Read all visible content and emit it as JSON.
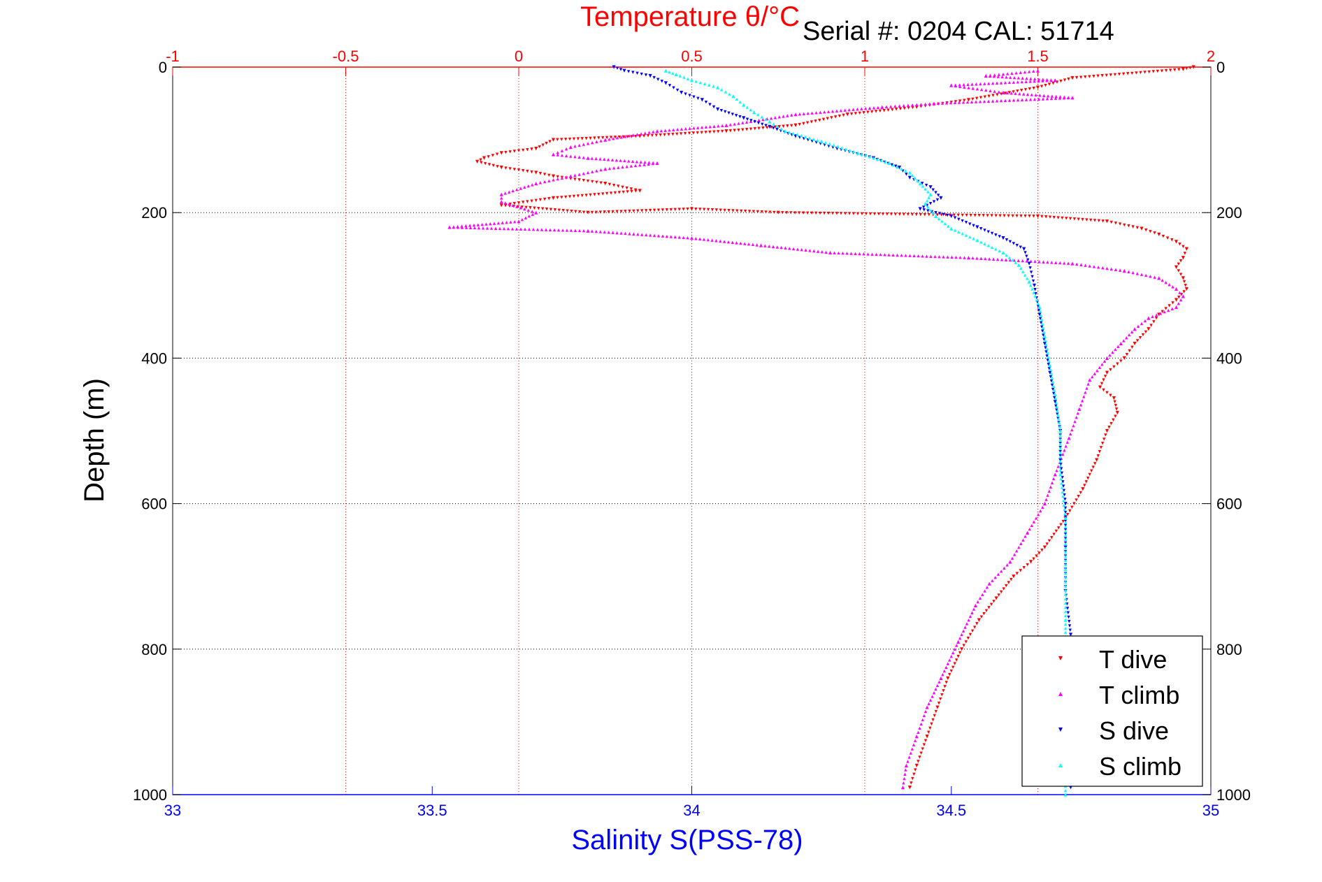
{
  "serial_text": "Serial #: 0204  CAL: 51714",
  "colors": {
    "t_dive": "#ff0000",
    "t_climb": "#ff00ff",
    "s_dive": "#0000ff",
    "s_climb": "#00ffff",
    "temp_axis": "#ff0000",
    "sal_axis": "#0000ff",
    "text": "#000000"
  },
  "chart_data": {
    "type": "scatter",
    "title": "Temperature θ/°C",
    "xlabel": "Salinity S(PSS-78)",
    "ylabel": "Depth (m)",
    "grid": true,
    "legend_position": "bottom-right",
    "y_inverted": true,
    "ylim": [
      0,
      1000
    ],
    "y_ticks": [
      "0",
      "200",
      "400",
      "600",
      "800",
      "1000"
    ],
    "temperature_axis": {
      "position": "top",
      "lim": [
        -1,
        2
      ],
      "ticks": [
        "-1",
        "-0.5",
        "0",
        "0.5",
        "1",
        "1.5",
        "2"
      ]
    },
    "salinity_axis": {
      "position": "bottom",
      "lim": [
        33,
        35
      ],
      "ticks": [
        "33",
        "33.5",
        "34",
        "34.5",
        "35"
      ]
    },
    "series": [
      {
        "name": "T dive",
        "axis": "temperature",
        "points": [
          [
            1.95,
            0
          ],
          [
            1.92,
            3
          ],
          [
            1.6,
            15
          ],
          [
            1.5,
            28
          ],
          [
            1.3,
            45
          ],
          [
            1.15,
            55
          ],
          [
            0.95,
            65
          ],
          [
            0.8,
            80
          ],
          [
            0.6,
            88
          ],
          [
            0.35,
            95
          ],
          [
            0.1,
            100
          ],
          [
            0.05,
            112
          ],
          [
            -0.05,
            118
          ],
          [
            -0.1,
            125
          ],
          [
            -0.12,
            130
          ],
          [
            -0.05,
            138
          ],
          [
            0.05,
            145
          ],
          [
            0.1,
            150
          ],
          [
            0.25,
            160
          ],
          [
            0.35,
            170
          ],
          [
            0.1,
            180
          ],
          [
            -0.05,
            190
          ],
          [
            0.2,
            200
          ],
          [
            0.5,
            195
          ],
          [
            0.75,
            200
          ],
          [
            1.5,
            205
          ],
          [
            1.7,
            212
          ],
          [
            1.8,
            222
          ],
          [
            1.85,
            230
          ],
          [
            1.9,
            240
          ],
          [
            1.93,
            250
          ],
          [
            1.92,
            262
          ],
          [
            1.9,
            275
          ],
          [
            1.92,
            290
          ],
          [
            1.93,
            305
          ],
          [
            1.9,
            320
          ],
          [
            1.85,
            340
          ],
          [
            1.82,
            360
          ],
          [
            1.78,
            380
          ],
          [
            1.75,
            400
          ],
          [
            1.7,
            420
          ],
          [
            1.68,
            440
          ],
          [
            1.72,
            455
          ],
          [
            1.73,
            475
          ],
          [
            1.7,
            500
          ],
          [
            1.67,
            540
          ],
          [
            1.63,
            580
          ],
          [
            1.58,
            620
          ],
          [
            1.52,
            660
          ],
          [
            1.48,
            680
          ],
          [
            1.43,
            700
          ],
          [
            1.38,
            730
          ],
          [
            1.33,
            760
          ],
          [
            1.28,
            800
          ],
          [
            1.24,
            840
          ],
          [
            1.21,
            880
          ],
          [
            1.18,
            920
          ],
          [
            1.15,
            960
          ],
          [
            1.13,
            990
          ]
        ]
      },
      {
        "name": "T climb",
        "axis": "temperature",
        "points": [
          [
            1.5,
            5
          ],
          [
            1.35,
            12
          ],
          [
            1.55,
            18
          ],
          [
            1.25,
            25
          ],
          [
            1.4,
            35
          ],
          [
            1.6,
            42
          ],
          [
            1.2,
            50
          ],
          [
            1.05,
            55
          ],
          [
            0.8,
            65
          ],
          [
            0.6,
            80
          ],
          [
            0.4,
            88
          ],
          [
            0.25,
            100
          ],
          [
            0.15,
            110
          ],
          [
            0.1,
            120
          ],
          [
            0.2,
            125
          ],
          [
            0.4,
            132
          ],
          [
            0.25,
            140
          ],
          [
            0.15,
            150
          ],
          [
            0.05,
            160
          ],
          [
            -0.05,
            175
          ],
          [
            -0.05,
            185
          ],
          [
            0.05,
            200
          ],
          [
            0.0,
            212
          ],
          [
            -0.2,
            220
          ],
          [
            0.2,
            225
          ],
          [
            0.5,
            235
          ],
          [
            0.7,
            245
          ],
          [
            0.9,
            255
          ],
          [
            1.3,
            262
          ],
          [
            1.6,
            270
          ],
          [
            1.75,
            280
          ],
          [
            1.85,
            290
          ],
          [
            1.9,
            305
          ],
          [
            1.92,
            315
          ],
          [
            1.9,
            330
          ],
          [
            1.82,
            345
          ],
          [
            1.78,
            360
          ],
          [
            1.74,
            380
          ],
          [
            1.7,
            400
          ],
          [
            1.65,
            430
          ],
          [
            1.62,
            470
          ],
          [
            1.59,
            510
          ],
          [
            1.55,
            560
          ],
          [
            1.52,
            600
          ],
          [
            1.47,
            640
          ],
          [
            1.42,
            680
          ],
          [
            1.36,
            710
          ],
          [
            1.32,
            740
          ],
          [
            1.27,
            790
          ],
          [
            1.22,
            840
          ],
          [
            1.18,
            880
          ],
          [
            1.15,
            920
          ],
          [
            1.12,
            960
          ],
          [
            1.11,
            990
          ]
        ]
      },
      {
        "name": "S dive",
        "axis": "salinity",
        "points": [
          [
            33.85,
            0
          ],
          [
            33.87,
            5
          ],
          [
            33.92,
            12
          ],
          [
            33.95,
            22
          ],
          [
            33.98,
            35
          ],
          [
            34.02,
            45
          ],
          [
            34.05,
            58
          ],
          [
            34.1,
            70
          ],
          [
            34.15,
            82
          ],
          [
            34.2,
            95
          ],
          [
            34.28,
            112
          ],
          [
            34.35,
            125
          ],
          [
            34.4,
            138
          ],
          [
            34.42,
            152
          ],
          [
            34.46,
            165
          ],
          [
            34.48,
            180
          ],
          [
            34.44,
            195
          ],
          [
            34.5,
            205
          ],
          [
            34.55,
            220
          ],
          [
            34.6,
            235
          ],
          [
            34.64,
            250
          ],
          [
            34.65,
            270
          ],
          [
            34.66,
            300
          ],
          [
            34.67,
            340
          ],
          [
            34.68,
            380
          ],
          [
            34.69,
            420
          ],
          [
            34.7,
            460
          ],
          [
            34.71,
            500
          ],
          [
            34.71,
            540
          ],
          [
            34.72,
            600
          ],
          [
            34.72,
            660
          ],
          [
            34.72,
            720
          ],
          [
            34.73,
            780
          ],
          [
            34.73,
            850
          ],
          [
            34.73,
            920
          ],
          [
            34.73,
            990
          ]
        ]
      },
      {
        "name": "S climb",
        "axis": "salinity",
        "points": [
          [
            33.95,
            5
          ],
          [
            33.97,
            10
          ],
          [
            34.0,
            18
          ],
          [
            34.05,
            28
          ],
          [
            34.08,
            40
          ],
          [
            34.1,
            52
          ],
          [
            34.12,
            62
          ],
          [
            34.15,
            75
          ],
          [
            34.18,
            88
          ],
          [
            34.25,
            102
          ],
          [
            34.32,
            118
          ],
          [
            34.38,
            132
          ],
          [
            34.42,
            145
          ],
          [
            34.44,
            160
          ],
          [
            34.46,
            175
          ],
          [
            34.45,
            188
          ],
          [
            34.47,
            205
          ],
          [
            34.5,
            222
          ],
          [
            34.55,
            238
          ],
          [
            34.6,
            255
          ],
          [
            34.63,
            272
          ],
          [
            34.65,
            295
          ],
          [
            34.67,
            330
          ],
          [
            34.68,
            370
          ],
          [
            34.69,
            410
          ],
          [
            34.7,
            450
          ],
          [
            34.71,
            500
          ],
          [
            34.71,
            560
          ],
          [
            34.72,
            620
          ],
          [
            34.72,
            690
          ],
          [
            34.72,
            760
          ],
          [
            34.72,
            840
          ],
          [
            34.72,
            920
          ],
          [
            34.72,
            1000
          ]
        ]
      }
    ]
  }
}
